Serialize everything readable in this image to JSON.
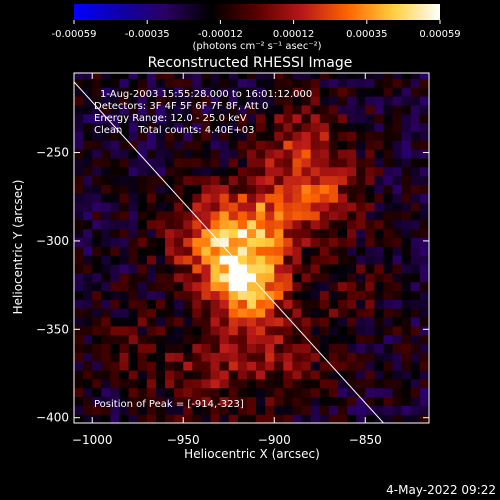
{
  "chart_data": {
    "type": "heatmap",
    "title": "Reconstructed RHESSI Image",
    "xlabel": "Heliocentric X (arcsec)",
    "ylabel": "Heliocentric Y (arcsec)",
    "xlim": [
      -1010,
      -815
    ],
    "ylim": [
      -403,
      -205
    ],
    "x_ticks": [
      -1000,
      -950,
      -900,
      -850
    ],
    "y_ticks": [
      -250,
      -300,
      -350,
      -400
    ],
    "colorbar": {
      "range": [
        -0.00059,
        0.00059
      ],
      "ticks": [
        "-0.00059",
        "-0.00035",
        "-0.00012",
        "0.00012",
        "0.00035",
        "0.00059"
      ],
      "unit_label": "(photons cm⁻² s⁻¹ asec⁻²)",
      "palette": [
        "#0000ff",
        "#1000a8",
        "#2b0060",
        "#000000",
        "#5a0000",
        "#b81818",
        "#ff6600",
        "#ffd040",
        "#ffffff"
      ]
    },
    "annotations": {
      "time_range": "1-Aug-2003 15:55:28.000 to 16:01:12.000",
      "detectors": "Detectors: 3F 4F 5F 6F 7F 8F, Att 0",
      "energy_range": "Energy Range: 12.0 - 25.0 keV",
      "clean_counts": "Clean     Total counts: 4.40E+03",
      "peak": "Position of Peak = [-914,-323]"
    },
    "peak_position": [
      -914,
      -323
    ],
    "limb_line": [
      [
        -1010,
        -210
      ],
      [
        -840,
        -403
      ]
    ],
    "sources": [
      {
        "x": -914,
        "y": -323,
        "sigma": 14,
        "amp": 0.00059
      },
      {
        "x": -935,
        "y": -300,
        "sigma": 18,
        "amp": 0.00042
      },
      {
        "x": -910,
        "y": -290,
        "sigma": 15,
        "amp": 0.00035
      },
      {
        "x": -885,
        "y": -250,
        "sigma": 20,
        "amp": 0.0003
      },
      {
        "x": -875,
        "y": -280,
        "sigma": 16,
        "amp": 0.00025
      },
      {
        "x": -900,
        "y": -360,
        "sigma": 22,
        "amp": 0.00022
      },
      {
        "x": -940,
        "y": -375,
        "sigma": 18,
        "amp": 0.00018
      },
      {
        "x": -980,
        "y": -360,
        "sigma": 16,
        "amp": 0.00012
      },
      {
        "x": -855,
        "y": -330,
        "sigma": 14,
        "amp": 0.00012
      }
    ],
    "background_level": -0.00018
  },
  "timestamp": "4-May-2022 09:22"
}
